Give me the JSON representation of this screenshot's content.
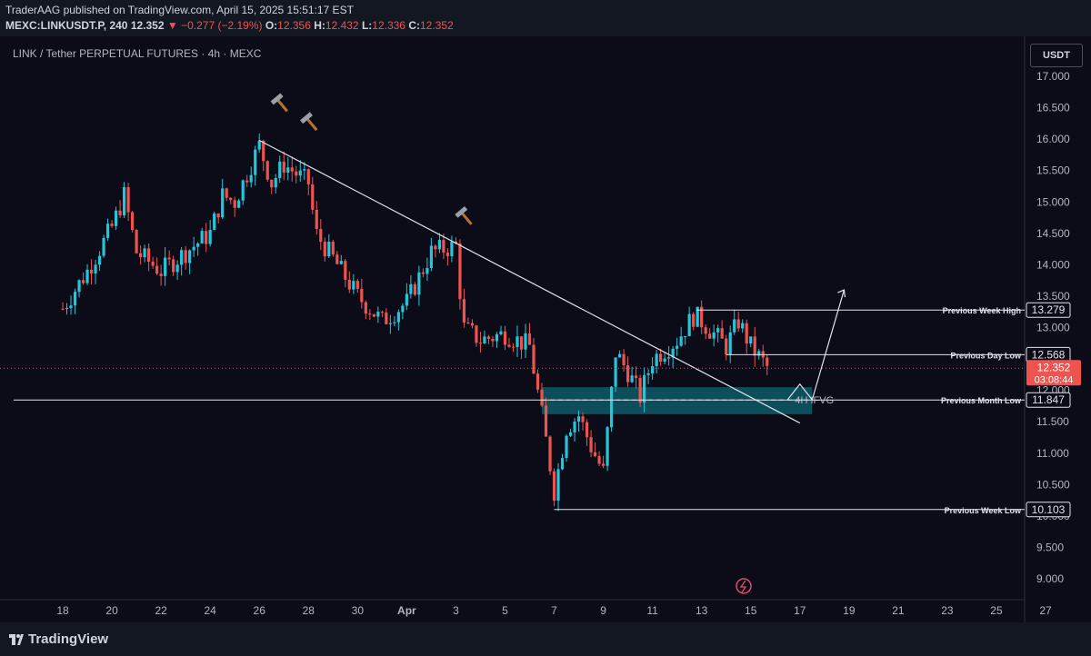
{
  "header": {
    "publisher_line": "TraderAAG published on TradingView.com, April 15, 2025 15:51:17 EST",
    "symbol": "MEXC:LINKUSDT.P, 240",
    "last": "12.352",
    "change": "▼ −0.277 (−2.19%)",
    "o_label": "O:",
    "o": "12.356",
    "h_label": "H:",
    "h": "12.432",
    "l_label": "L:",
    "l": "12.336",
    "c_label": "C:",
    "c": "12.352"
  },
  "chart_title": "LINK / Tether PERPETUAL FUTURES · 4h · MEXC",
  "currency_button": "USDT",
  "footer": {
    "brand": "TradingView"
  },
  "colors": {
    "up": "#26c6da",
    "down": "#ef5350",
    "background": "#0b0c18",
    "zone": "#0e6570"
  },
  "chart_data": {
    "type": "candlestick",
    "timeframe": "4h",
    "ylim": [
      8.7,
      17.3
    ],
    "y_ticks": [
      "17.000",
      "16.500",
      "16.000",
      "15.500",
      "15.000",
      "14.500",
      "14.000",
      "13.500",
      "13.000",
      "12.500",
      "12.000",
      "11.500",
      "11.000",
      "10.500",
      "10.000",
      "9.500",
      "9.000"
    ],
    "x_ticks": [
      "18",
      "20",
      "22",
      "24",
      "26",
      "28",
      "30",
      "Apr",
      "3",
      "5",
      "7",
      "9",
      "11",
      "13",
      "15",
      "17",
      "19",
      "21",
      "23",
      "25",
      "27"
    ],
    "price_path": [
      [
        "Mar 18",
        13.3
      ],
      [
        "Mar 19",
        13.9
      ],
      [
        "Mar 20",
        14.6
      ],
      [
        "Mar 20.5",
        15.1
      ],
      [
        "Mar 21",
        14.2
      ],
      [
        "Mar 22",
        13.9
      ],
      [
        "Mar 23",
        14.2
      ],
      [
        "Mar 24",
        14.5
      ],
      [
        "Mar 24.5",
        15.1
      ],
      [
        "Mar 25",
        15.0
      ],
      [
        "Mar 26",
        15.9
      ],
      [
        "Mar 26.5",
        15.3
      ],
      [
        "Mar 27",
        15.6
      ],
      [
        "Mar 28",
        15.3
      ],
      [
        "Mar 28.3",
        14.5
      ],
      [
        "Mar 29",
        14.1
      ],
      [
        "Mar 30",
        13.5
      ],
      [
        "Mar 31",
        13.1
      ],
      [
        "Apr 1",
        13.4
      ],
      [
        "Apr 2",
        14.2
      ],
      [
        "Apr 3",
        14.3
      ],
      [
        "Apr 3.3",
        13.0
      ],
      [
        "Apr 4",
        12.8
      ],
      [
        "Apr 5",
        12.9
      ],
      [
        "Apr 6",
        12.7
      ],
      [
        "Apr 6.5",
        11.6
      ],
      [
        "Apr 7",
        10.4
      ],
      [
        "Apr 7.5",
        11.4
      ],
      [
        "Apr 8",
        11.6
      ],
      [
        "Apr 8.5",
        11.1
      ],
      [
        "Apr 9",
        10.7
      ],
      [
        "Apr 9.5",
        12.6
      ],
      [
        "Apr 10",
        12.3
      ],
      [
        "Apr 10.5",
        11.9
      ],
      [
        "Apr 11",
        12.5
      ],
      [
        "Apr 12",
        12.8
      ],
      [
        "Apr 12.7",
        13.2
      ],
      [
        "Apr 13",
        13.1
      ],
      [
        "Apr 14",
        12.7
      ],
      [
        "Apr 14.5",
        13.1
      ],
      [
        "Apr 15",
        12.7
      ],
      [
        "Apr 15.7",
        12.35
      ]
    ],
    "levels": [
      {
        "label": "Previous Week High",
        "value": 13.279
      },
      {
        "label": "Previous Day Low",
        "value": 12.568
      },
      {
        "label": "Previous Month Low",
        "value": 11.847
      },
      {
        "label": "Previous Week Low",
        "value": 10.103
      }
    ],
    "current": {
      "value": "12.352",
      "countdown": "03:08:44"
    },
    "zone": {
      "label": "4H IFVG",
      "top": 12.05,
      "bottom": 11.62
    },
    "trendline": {
      "from": [
        "Mar 26",
        15.98
      ],
      "to": [
        "Apr 17",
        11.48
      ]
    },
    "projection": [
      [
        "Apr 16.5",
        11.85
      ],
      [
        "Apr 17",
        12.1
      ],
      [
        "Apr 17.5",
        11.85
      ],
      [
        "Apr 18.8",
        13.6
      ]
    ],
    "markers": [
      "hammer",
      "hammer",
      "hammer"
    ]
  }
}
